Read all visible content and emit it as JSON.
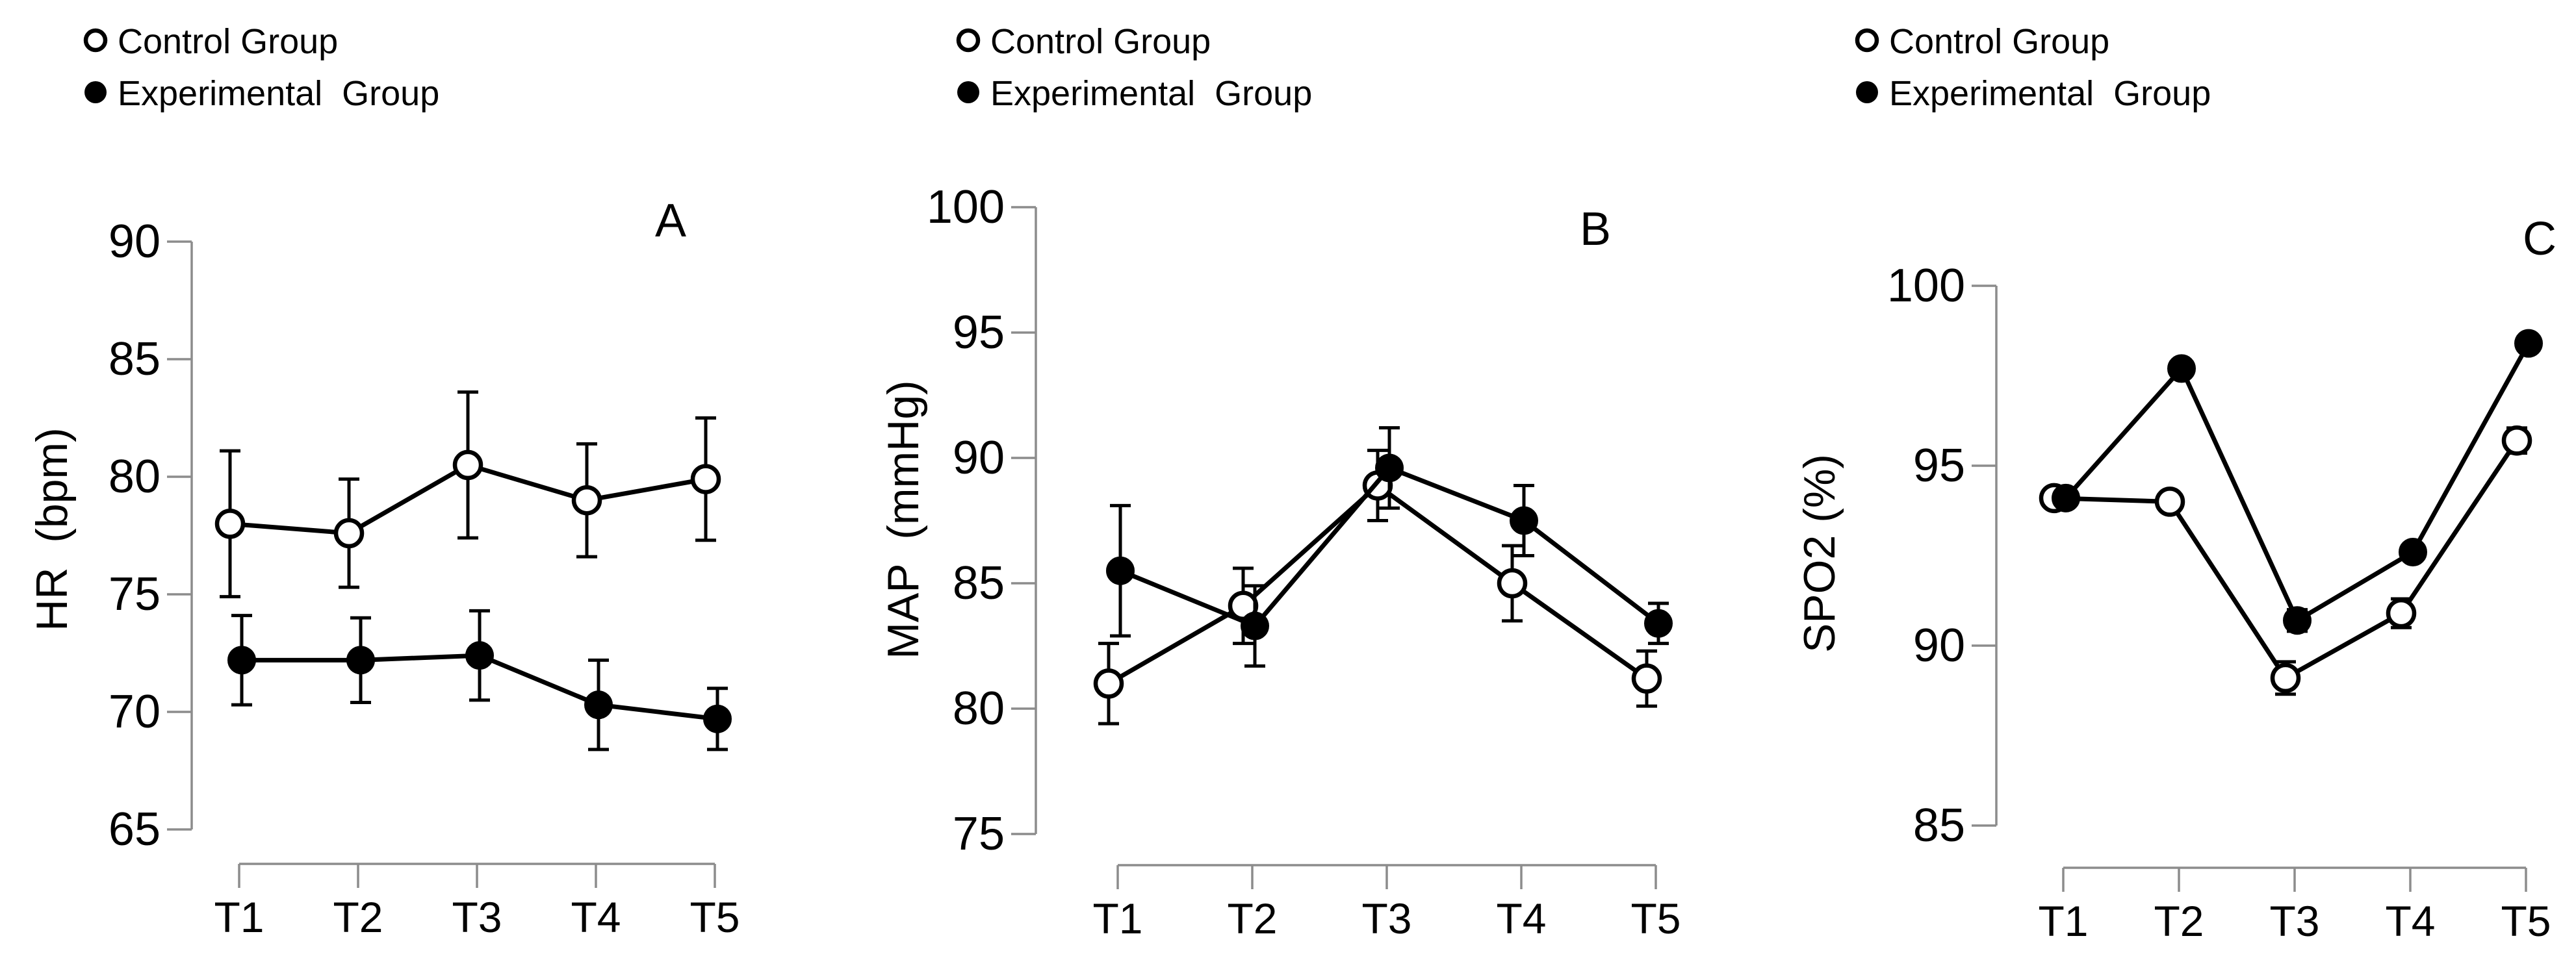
{
  "colors": {
    "background": "#ffffff",
    "axis": "#8c8c8c",
    "data": "#000000"
  },
  "legend": {
    "position": "top",
    "items": [
      {
        "label": "Control Group",
        "marker": "open"
      },
      {
        "label": "Experimental  Group",
        "marker": "filled"
      }
    ]
  },
  "chart_data": [
    {
      "type": "line",
      "panel_label": "A",
      "ylabel": "HR  (bpm)",
      "xlabel": "",
      "categories": [
        "T1",
        "T2",
        "T3",
        "T4",
        "T5"
      ],
      "ylim": [
        65,
        90
      ],
      "yticks": [
        65,
        70,
        75,
        80,
        85,
        90
      ],
      "grid": false,
      "legend_position": "top",
      "series": [
        {
          "name": "Control Group",
          "marker": "open",
          "values": [
            78.0,
            77.6,
            80.5,
            79.0,
            79.9
          ],
          "errors": [
            3.1,
            2.3,
            3.1,
            2.4,
            2.6
          ]
        },
        {
          "name": "Experimental Group",
          "marker": "filled",
          "values": [
            72.2,
            72.2,
            72.4,
            70.3,
            69.7
          ],
          "errors": [
            1.9,
            1.8,
            1.9,
            1.9,
            1.3
          ]
        }
      ]
    },
    {
      "type": "line",
      "panel_label": "B",
      "ylabel": "MAP  (mmHg)",
      "xlabel": "",
      "categories": [
        "T1",
        "T2",
        "T3",
        "T4",
        "T5"
      ],
      "ylim": [
        75,
        100
      ],
      "yticks": [
        75,
        80,
        85,
        90,
        95,
        100
      ],
      "grid": false,
      "legend_position": "top",
      "series": [
        {
          "name": "Control Group",
          "marker": "open",
          "values": [
            81.0,
            84.1,
            88.9,
            85.0,
            81.2
          ],
          "errors": [
            1.6,
            1.5,
            1.4,
            1.5,
            1.1
          ]
        },
        {
          "name": "Experimental Group",
          "marker": "filled",
          "values": [
            85.5,
            83.3,
            89.6,
            87.5,
            83.4
          ],
          "errors": [
            2.6,
            1.6,
            1.6,
            1.4,
            0.8
          ]
        }
      ]
    },
    {
      "type": "line",
      "panel_label": "C",
      "ylabel": "SPO2 (%)",
      "xlabel": "",
      "categories": [
        "T1",
        "T2",
        "T3",
        "T4",
        "T5"
      ],
      "ylim": [
        85,
        100
      ],
      "yticks": [
        85,
        90,
        95,
        100
      ],
      "grid": false,
      "legend_position": "top",
      "series": [
        {
          "name": "Control Group",
          "marker": "open",
          "values": [
            94.1,
            94.0,
            89.1,
            90.9,
            95.7
          ],
          "errors": [
            0.25,
            0,
            0.45,
            0.4,
            0.35
          ]
        },
        {
          "name": "Experimental Group",
          "marker": "filled",
          "values": [
            94.1,
            97.7,
            90.7,
            92.6,
            98.4
          ],
          "errors": [
            0.2,
            0,
            0.3,
            0,
            0
          ]
        }
      ]
    }
  ]
}
